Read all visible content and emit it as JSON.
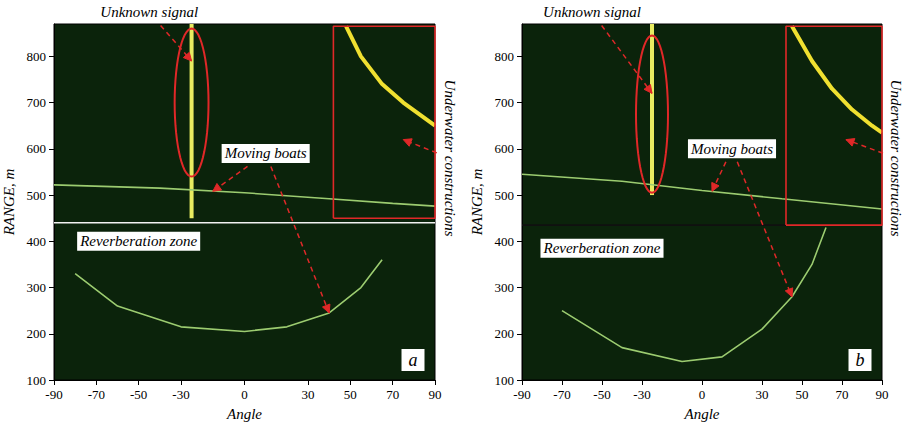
{
  "chart_data": [
    {
      "type": "line",
      "panel_label": "a",
      "x_label": "Angle",
      "y_label": "RANGE, m",
      "xlim": [
        -90,
        90
      ],
      "xticks": [
        -90,
        -70,
        -50,
        -30,
        0,
        30,
        50,
        70,
        90
      ],
      "ylim": [
        100,
        870
      ],
      "yticks": [
        100,
        200,
        300,
        400,
        500,
        600,
        700,
        800
      ],
      "grid": false,
      "series": [
        {
          "color": "#f2f2f2",
          "line_style": "solid",
          "x": [
            -90,
            90
          ],
          "values": [
            440,
            440
          ]
        },
        {
          "color": "#e8ec60",
          "line_style": "thick",
          "x": [
            -25,
            -25
          ],
          "values": [
            450,
            870
          ]
        },
        {
          "color": "#9ccc70",
          "line_style": "solid",
          "x": [
            -90,
            -40,
            0,
            40,
            70,
            90
          ],
          "values": [
            522,
            515,
            505,
            492,
            482,
            476
          ]
        },
        {
          "color": "#9ccc70",
          "line_style": "solid",
          "x": [
            -80,
            -60,
            -30,
            0,
            20,
            40,
            55,
            65
          ],
          "values": [
            330,
            260,
            215,
            205,
            215,
            245,
            300,
            360
          ]
        },
        {
          "color": "#f0e030",
          "line_style": "thick",
          "x": [
            48,
            55,
            65,
            75,
            90
          ],
          "values": [
            865,
            800,
            740,
            700,
            650
          ]
        },
        {
          "color": "#e02828",
          "line_style": "solid",
          "x": [
            42,
            90,
            90,
            42,
            42
          ],
          "values": [
            450,
            450,
            865,
            865,
            450
          ]
        }
      ],
      "ellipse": {
        "x": -25,
        "y": 700,
        "rx": 8,
        "ry": 160,
        "color": "#e02828"
      },
      "annotations": [
        {
          "text": "Unknown signal",
          "x": -45,
          "y": 895,
          "points_to": [
            [
              -25,
              790
            ]
          ]
        },
        {
          "text": "Moving boats",
          "x": 10,
          "y": 590,
          "points_to": [
            [
              -15,
              508
            ],
            [
              40,
              245
            ]
          ]
        },
        {
          "text": "Reverberation zone",
          "x": -50,
          "y": 400,
          "points_to": []
        },
        {
          "text": "Underwater constructions",
          "x": 97,
          "y": 580,
          "points_to": [
            [
              75,
              620
            ]
          ]
        }
      ]
    },
    {
      "type": "line",
      "panel_label": "b",
      "x_label": "Angle",
      "y_label": "RANGE, m",
      "xlim": [
        -90,
        90
      ],
      "xticks": [
        -90,
        -70,
        -50,
        -30,
        0,
        30,
        50,
        70,
        90
      ],
      "ylim": [
        100,
        870
      ],
      "yticks": [
        100,
        200,
        300,
        400,
        500,
        600,
        700,
        800
      ],
      "grid": false,
      "series": [
        {
          "color": "#101010",
          "line_style": "solid",
          "x": [
            -90,
            90
          ],
          "values": [
            435,
            435
          ]
        },
        {
          "color": "#e8ec60",
          "line_style": "thick",
          "x": [
            -25,
            -25
          ],
          "values": [
            500,
            870
          ]
        },
        {
          "color": "#9ccc70",
          "line_style": "solid",
          "x": [
            -90,
            -40,
            0,
            40,
            90
          ],
          "values": [
            545,
            530,
            510,
            492,
            470
          ]
        },
        {
          "color": "#9ccc70",
          "line_style": "solid",
          "x": [
            -70,
            -40,
            -10,
            10,
            30,
            45,
            55,
            62
          ],
          "values": [
            250,
            170,
            140,
            150,
            210,
            280,
            350,
            430
          ]
        },
        {
          "color": "#f0e030",
          "line_style": "thick",
          "x": [
            45,
            55,
            65,
            75,
            85,
            90
          ],
          "values": [
            865,
            790,
            730,
            685,
            650,
            635
          ]
        },
        {
          "color": "#e02828",
          "line_style": "solid",
          "x": [
            42,
            90,
            90,
            42,
            42
          ],
          "values": [
            435,
            435,
            865,
            865,
            435
          ]
        }
      ],
      "ellipse": {
        "x": -25,
        "y": 675,
        "rx": 8,
        "ry": 170,
        "color": "#e02828"
      },
      "annotations": [
        {
          "text": "Unknown signal",
          "x": -55,
          "y": 895,
          "points_to": [
            [
              -25,
              720
            ]
          ]
        },
        {
          "text": "Moving boats",
          "x": 15,
          "y": 600,
          "points_to": [
            [
              5,
              508
            ],
            [
              45,
              280
            ]
          ]
        },
        {
          "text": "Reverberation zone",
          "x": -50,
          "y": 385,
          "points_to": []
        },
        {
          "text": "Underwater constructions",
          "x": 97,
          "y": 580,
          "points_to": [
            [
              72,
              620
            ]
          ]
        }
      ]
    }
  ]
}
